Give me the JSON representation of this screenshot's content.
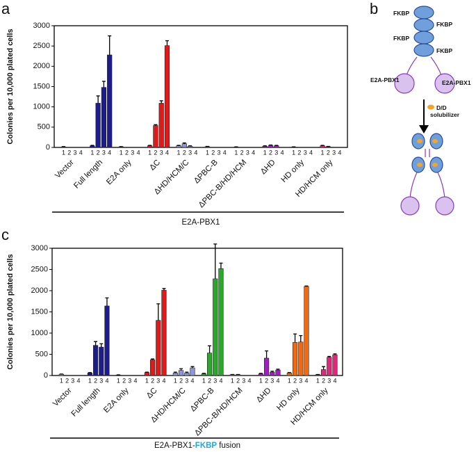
{
  "figure": {
    "panels": [
      "a",
      "b",
      "c"
    ],
    "diagram": {
      "fkbp_labels": [
        "FKBP",
        "FKBP",
        "FKBP",
        "FKBP"
      ],
      "protein_labels": [
        "E2A-PBX1",
        "E2A-PBX1"
      ],
      "reagent_label": [
        "D/D",
        "solubilizer"
      ]
    }
  },
  "chart_data": [
    {
      "type": "bar",
      "ylabel": "Colonies per 10,000 plated cells",
      "categories": [
        "Vector",
        "Full length",
        "E2A only",
        "ΔC",
        "ΔHD/HCM/C",
        "ΔPBC-B",
        "ΔPBC-B/HD/HCM",
        "ΔHD",
        "HD only",
        "HD/HCM only"
      ],
      "colors": [
        "#9a9aa8",
        "#1c1c8e",
        "#9a9aa8",
        "#e01a1a",
        "#8c96d8",
        "#2aa82a",
        "#9a9aa8",
        "#a21ec4",
        "#f06a14",
        "#e0287a"
      ],
      "series": [
        {
          "name": "1",
          "values": [
            15,
            40,
            15,
            40,
            40,
            20,
            10,
            30,
            10,
            40
          ],
          "errors": [
            5,
            10,
            5,
            10,
            10,
            5,
            5,
            10,
            5,
            10
          ]
        },
        {
          "name": "2",
          "values": [
            0,
            1090,
            0,
            540,
            90,
            0,
            0,
            50,
            0,
            20
          ],
          "errors": [
            0,
            180,
            0,
            20,
            20,
            0,
            0,
            10,
            0,
            5
          ]
        },
        {
          "name": "3",
          "values": [
            0,
            1480,
            0,
            1090,
            30,
            0,
            0,
            40,
            0,
            0
          ],
          "errors": [
            0,
            150,
            0,
            60,
            10,
            0,
            0,
            10,
            0,
            0
          ]
        },
        {
          "name": "4",
          "values": [
            0,
            2280,
            0,
            2510,
            0,
            0,
            0,
            0,
            0,
            0
          ],
          "errors": [
            0,
            470,
            0,
            120,
            0,
            0,
            0,
            0,
            0,
            0
          ]
        }
      ],
      "ylim": [
        0,
        3000
      ],
      "yticks": [
        0,
        500,
        1000,
        1500,
        2000,
        2500,
        3000
      ],
      "xlabel": [
        "E2A-PBX1"
      ]
    },
    {
      "type": "bar",
      "ylabel": "Colonies per 10,000 plated cells",
      "categories": [
        "Vector",
        "Full length",
        "E2A only",
        "ΔC",
        "ΔHD/HCM/C",
        "ΔPBC-B",
        "ΔPBC-B/HD/HCM",
        "ΔHD",
        "HD only",
        "HD/HCM only"
      ],
      "colors": [
        "#9a9aa8",
        "#1c1c8e",
        "#9a9aa8",
        "#e01a1a",
        "#8c96d8",
        "#2aa82a",
        "#9a9aa8",
        "#a21ec4",
        "#f06a14",
        "#e0287a"
      ],
      "series": [
        {
          "name": "1",
          "values": [
            30,
            60,
            10,
            70,
            60,
            40,
            20,
            40,
            60,
            20
          ],
          "errors": [
            5,
            10,
            5,
            10,
            20,
            10,
            5,
            10,
            10,
            5
          ]
        },
        {
          "name": "2",
          "values": [
            0,
            710,
            0,
            370,
            120,
            530,
            20,
            410,
            780,
            140
          ],
          "errors": [
            0,
            90,
            0,
            20,
            40,
            170,
            5,
            170,
            200,
            70
          ]
        },
        {
          "name": "3",
          "values": [
            0,
            670,
            0,
            1300,
            60,
            2280,
            0,
            80,
            790,
            430
          ],
          "errors": [
            0,
            80,
            0,
            390,
            20,
            820,
            0,
            20,
            150,
            20
          ]
        },
        {
          "name": "4",
          "values": [
            0,
            1640,
            0,
            2010,
            180,
            2520,
            0,
            130,
            2100,
            490
          ],
          "errors": [
            0,
            190,
            0,
            40,
            30,
            130,
            0,
            20,
            10,
            20
          ]
        }
      ],
      "ylim": [
        0,
        3000
      ],
      "yticks": [
        0,
        500,
        1000,
        1500,
        2000,
        2500,
        3000
      ],
      "xlabel": [
        "E2A-PBX1-",
        "FKBP",
        " fusion"
      ],
      "xlabel_highlight": "#1fa8e0"
    }
  ]
}
